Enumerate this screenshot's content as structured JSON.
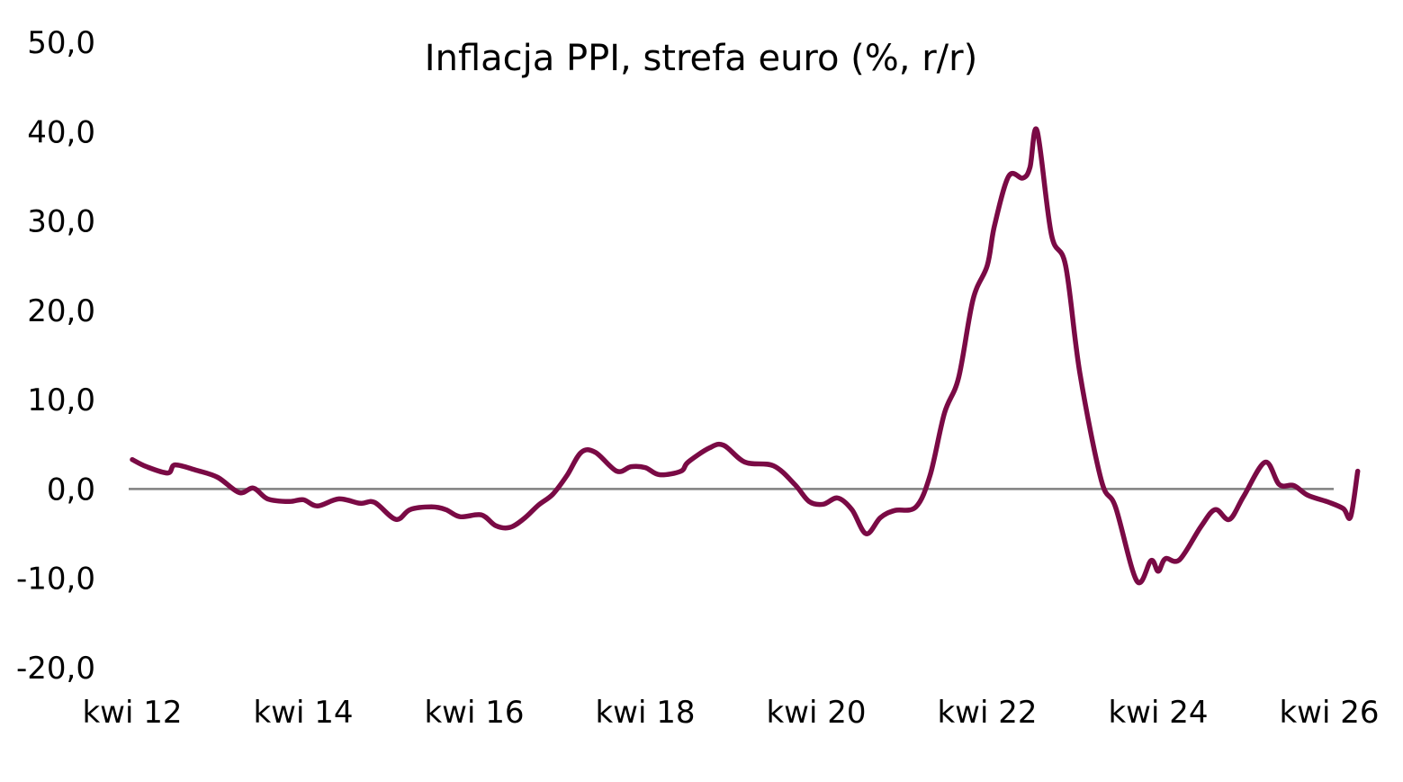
{
  "chart_data": {
    "type": "line",
    "title": "Inflacja PPI, strefa euro (%, r/r)",
    "xlabel": "",
    "ylabel": "",
    "ylim": [
      -20,
      50
    ],
    "y_ticks": [
      "-20,0",
      "-10,0",
      "0,0",
      "10,0",
      "20,0",
      "30,0",
      "40,0",
      "50,0"
    ],
    "y_tick_values": [
      -20,
      -10,
      0,
      10,
      20,
      30,
      40,
      50
    ],
    "x_ticks": [
      "kwi 12",
      "kwi 14",
      "kwi 16",
      "kwi 18",
      "kwi 20",
      "kwi 22",
      "kwi 24",
      "kwi 26"
    ],
    "x_tick_values": [
      "2012-04",
      "2014-04",
      "2016-04",
      "2018-04",
      "2020-04",
      "2022-04",
      "2024-04",
      "2026-04"
    ],
    "grid": false,
    "zero_line": true,
    "colors": {
      "series": "#7a0a45",
      "zero_line": "#808080"
    },
    "series": [
      {
        "values": [
          {
            "x": "2012-04",
            "y": 3.3
          },
          {
            "x": "2012-06",
            "y": 2.5
          },
          {
            "x": "2012-09",
            "y": 1.8
          },
          {
            "x": "2012-10",
            "y": 2.7
          },
          {
            "x": "2013-01",
            "y": 2.1
          },
          {
            "x": "2013-04",
            "y": 1.3
          },
          {
            "x": "2013-07",
            "y": -0.4
          },
          {
            "x": "2013-09",
            "y": 0.1
          },
          {
            "x": "2013-11",
            "y": -1.1
          },
          {
            "x": "2014-02",
            "y": -1.4
          },
          {
            "x": "2014-04",
            "y": -1.2
          },
          {
            "x": "2014-06",
            "y": -1.9
          },
          {
            "x": "2014-09",
            "y": -1.1
          },
          {
            "x": "2014-12",
            "y": -1.6
          },
          {
            "x": "2015-02",
            "y": -1.5
          },
          {
            "x": "2015-05",
            "y": -3.4
          },
          {
            "x": "2015-07",
            "y": -2.3
          },
          {
            "x": "2015-10",
            "y": -2.0
          },
          {
            "x": "2015-12",
            "y": -2.3
          },
          {
            "x": "2016-02",
            "y": -3.1
          },
          {
            "x": "2016-05",
            "y": -2.9
          },
          {
            "x": "2016-07",
            "y": -4.1
          },
          {
            "x": "2016-09",
            "y": -4.3
          },
          {
            "x": "2016-11",
            "y": -3.3
          },
          {
            "x": "2017-01",
            "y": -1.8
          },
          {
            "x": "2017-03",
            "y": -0.6
          },
          {
            "x": "2017-05",
            "y": 1.5
          },
          {
            "x": "2017-07",
            "y": 4.1
          },
          {
            "x": "2017-09",
            "y": 4.1
          },
          {
            "x": "2017-12",
            "y": 2.0
          },
          {
            "x": "2018-02",
            "y": 2.5
          },
          {
            "x": "2018-04",
            "y": 2.4
          },
          {
            "x": "2018-06",
            "y": 1.6
          },
          {
            "x": "2018-09",
            "y": 2.0
          },
          {
            "x": "2018-10",
            "y": 3.0
          },
          {
            "x": "2019-01",
            "y": 4.6
          },
          {
            "x": "2019-03",
            "y": 4.9
          },
          {
            "x": "2019-06",
            "y": 3.0
          },
          {
            "x": "2019-10",
            "y": 2.6
          },
          {
            "x": "2020-01",
            "y": 0.5
          },
          {
            "x": "2020-03",
            "y": -1.4
          },
          {
            "x": "2020-05",
            "y": -1.7
          },
          {
            "x": "2020-07",
            "y": -1.0
          },
          {
            "x": "2020-09",
            "y": -2.3
          },
          {
            "x": "2020-11",
            "y": -5.0
          },
          {
            "x": "2021-01",
            "y": -3.2
          },
          {
            "x": "2021-03",
            "y": -2.4
          },
          {
            "x": "2021-06",
            "y": -2.0
          },
          {
            "x": "2021-08",
            "y": 1.6
          },
          {
            "x": "2021-10",
            "y": 8.5
          },
          {
            "x": "2021-12",
            "y": 12.5
          },
          {
            "x": "2022-02",
            "y": 21.2
          },
          {
            "x": "2022-04",
            "y": 25.0
          },
          {
            "x": "2022-05",
            "y": 29.4
          },
          {
            "x": "2022-07",
            "y": 35.0
          },
          {
            "x": "2022-09",
            "y": 34.8
          },
          {
            "x": "2022-10",
            "y": 36.0
          },
          {
            "x": "2022-11",
            "y": 40.1
          },
          {
            "x": "2023-01",
            "y": 28.5
          },
          {
            "x": "2023-03",
            "y": 25.0
          },
          {
            "x": "2023-05",
            "y": 13.0
          },
          {
            "x": "2023-08",
            "y": 1.0
          },
          {
            "x": "2023-10",
            "y": -2.0
          },
          {
            "x": "2024-01",
            "y": -10.3
          },
          {
            "x": "2024-03",
            "y": -8.0
          },
          {
            "x": "2024-04",
            "y": -9.2
          },
          {
            "x": "2024-05",
            "y": -7.8
          },
          {
            "x": "2024-07",
            "y": -7.9
          },
          {
            "x": "2024-10",
            "y": -4.2
          },
          {
            "x": "2024-12",
            "y": -2.3
          },
          {
            "x": "2025-02",
            "y": -3.4
          },
          {
            "x": "2025-04",
            "y": -0.8
          },
          {
            "x": "2025-07",
            "y": 3.0
          },
          {
            "x": "2025-09",
            "y": 0.5
          },
          {
            "x": "2025-11",
            "y": 0.4
          },
          {
            "x": "2026-01",
            "y": -0.7
          },
          {
            "x": "2026-04",
            "y": -1.5
          },
          {
            "x": "2026-06",
            "y": -2.2
          },
          {
            "x": "2026-07",
            "y": -3.1
          },
          {
            "x": "2026-08",
            "y": 2.0
          }
        ]
      }
    ]
  }
}
